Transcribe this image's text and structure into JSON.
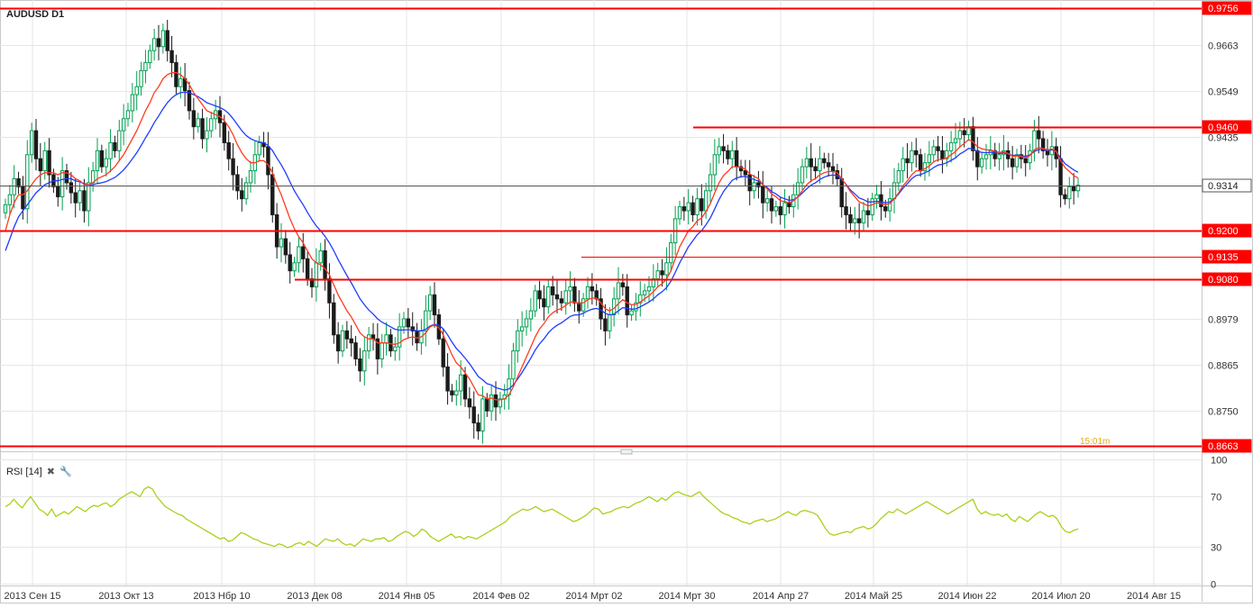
{
  "chart_data": {
    "type": "candlestick",
    "title": "AUDUSD D1",
    "x_ticks": [
      "2013 Сен 15",
      "2013 Окт 13",
      "2013 Нбр 10",
      "2013 Дек 08",
      "2014 Янв 05",
      "2014 Фев 02",
      "2014 Мрт 02",
      "2014 Мрт 30",
      "2014 Апр 27",
      "2014 Май 25",
      "2014 Июн 22",
      "2014 Июл 20",
      "2014 Авг 15"
    ],
    "y_ticks": [
      "0.9663",
      "0.9549",
      "0.9435",
      "0.8979",
      "0.8865",
      "0.8750"
    ],
    "y_range": [
      0.8656,
      0.9772
    ],
    "candles_close": [
      0.9265,
      0.929,
      0.933,
      0.931,
      0.9255,
      0.939,
      0.945,
      0.938,
      0.935,
      0.94,
      0.934,
      0.931,
      0.9285,
      0.935,
      0.932,
      0.9295,
      0.927,
      0.93,
      0.925,
      0.932,
      0.935,
      0.94,
      0.936,
      0.938,
      0.942,
      0.94,
      0.945,
      0.948,
      0.95,
      0.954,
      0.956,
      0.96,
      0.962,
      0.965,
      0.968,
      0.966,
      0.97,
      0.965,
      0.962,
      0.956,
      0.958,
      0.955,
      0.95,
      0.946,
      0.948,
      0.943,
      0.945,
      0.948,
      0.95,
      0.947,
      0.942,
      0.938,
      0.934,
      0.93,
      0.928,
      0.932,
      0.935,
      0.939,
      0.942,
      0.941,
      0.934,
      0.924,
      0.916,
      0.918,
      0.914,
      0.91,
      0.912,
      0.916,
      0.913,
      0.908,
      0.906,
      0.912,
      0.915,
      0.908,
      0.902,
      0.894,
      0.89,
      0.895,
      0.893,
      0.892,
      0.888,
      0.885,
      0.89,
      0.894,
      0.893,
      0.888,
      0.892,
      0.894,
      0.89,
      0.891,
      0.896,
      0.898,
      0.896,
      0.895,
      0.892,
      0.895,
      0.9,
      0.904,
      0.899,
      0.893,
      0.886,
      0.88,
      0.879,
      0.88,
      0.884,
      0.878,
      0.876,
      0.872,
      0.87,
      0.878,
      0.875,
      0.879,
      0.876,
      0.878,
      0.879,
      0.883,
      0.89,
      0.895,
      0.896,
      0.898,
      0.9,
      0.905,
      0.903,
      0.901,
      0.906,
      0.904,
      0.903,
      0.902,
      0.905,
      0.906,
      0.902,
      0.9,
      0.903,
      0.906,
      0.905,
      0.903,
      0.898,
      0.895,
      0.899,
      0.903,
      0.907,
      0.906,
      0.899,
      0.9,
      0.902,
      0.904,
      0.905,
      0.906,
      0.908,
      0.91,
      0.909,
      0.912,
      0.917,
      0.923,
      0.926,
      0.925,
      0.927,
      0.924,
      0.928,
      0.925,
      0.93,
      0.934,
      0.939,
      0.941,
      0.94,
      0.938,
      0.94,
      0.936,
      0.935,
      0.934,
      0.93,
      0.932,
      0.931,
      0.927,
      0.928,
      0.925,
      0.926,
      0.924,
      0.927,
      0.926,
      0.929,
      0.932,
      0.936,
      0.938,
      0.936,
      0.935,
      0.938,
      0.937,
      0.936,
      0.935,
      0.933,
      0.926,
      0.924,
      0.922,
      0.923,
      0.922,
      0.925,
      0.924,
      0.928,
      0.929,
      0.926,
      0.925,
      0.928,
      0.932,
      0.935,
      0.938,
      0.937,
      0.94,
      0.939,
      0.935,
      0.937,
      0.939,
      0.941,
      0.94,
      0.938,
      0.94,
      0.942,
      0.943,
      0.945,
      0.944,
      0.946,
      0.94,
      0.936,
      0.938,
      0.939,
      0.94,
      0.938,
      0.939,
      0.94,
      0.938,
      0.936,
      0.939,
      0.938,
      0.937,
      0.94,
      0.945,
      0.943,
      0.94,
      0.939,
      0.941,
      0.938,
      0.929,
      0.928,
      0.931,
      0.93,
      0.9314
    ],
    "ma_fast": [
      0.92,
      0.924,
      0.927,
      0.929,
      0.929,
      0.93,
      0.9315,
      0.933,
      0.934,
      0.9345,
      0.9345,
      0.9345,
      0.934,
      0.9345,
      0.9345,
      0.934,
      0.933,
      0.9325,
      0.9315,
      0.9315,
      0.932,
      0.933,
      0.9335,
      0.934,
      0.935,
      0.936,
      0.9375,
      0.939,
      0.941,
      0.943,
      0.945,
      0.9475,
      0.95,
      0.952,
      0.9545,
      0.956,
      0.958,
      0.959,
      0.9595,
      0.9595,
      0.959,
      0.958,
      0.9565,
      0.9545,
      0.953,
      0.9515,
      0.95,
      0.9495,
      0.949,
      0.9485,
      0.9475,
      0.946,
      0.944,
      0.9415,
      0.9395,
      0.938,
      0.937,
      0.937,
      0.9375,
      0.9375,
      0.9365,
      0.9345,
      0.9315,
      0.929,
      0.926,
      0.923,
      0.9205,
      0.9185,
      0.917,
      0.915,
      0.913,
      0.912,
      0.9115,
      0.9105,
      0.909,
      0.9065,
      0.904,
      0.902,
      0.9,
      0.8985,
      0.8965,
      0.8945,
      0.8935,
      0.893,
      0.893,
      0.892,
      0.892,
      0.892,
      0.8918,
      0.8916,
      0.892,
      0.8928,
      0.8932,
      0.8935,
      0.8932,
      0.8935,
      0.8945,
      0.896,
      0.8965,
      0.8958,
      0.894,
      0.8915,
      0.889,
      0.887,
      0.886,
      0.8845,
      0.883,
      0.881,
      0.879,
      0.8788,
      0.878,
      0.8782,
      0.8778,
      0.8778,
      0.878,
      0.879,
      0.881,
      0.8835,
      0.886,
      0.8885,
      0.891,
      0.8935,
      0.8955,
      0.8968,
      0.8985,
      0.8995,
      0.9002,
      0.9006,
      0.9014,
      0.9022,
      0.9022,
      0.9018,
      0.902,
      0.9028,
      0.9032,
      0.9032,
      0.902,
      0.9005,
      0.9,
      0.9006,
      0.9018,
      0.9028,
      0.902,
      0.9015,
      0.9016,
      0.9022,
      0.903,
      0.9038,
      0.9048,
      0.906,
      0.9068,
      0.908,
      0.91,
      0.913,
      0.916,
      0.918,
      0.92,
      0.921,
      0.9225,
      0.9232,
      0.9248,
      0.9268,
      0.9295,
      0.932,
      0.9338,
      0.9348,
      0.936,
      0.936,
      0.9358,
      0.9354,
      0.9342,
      0.9336,
      0.933,
      0.9315,
      0.9305,
      0.9292,
      0.9285,
      0.9275,
      0.9273,
      0.927,
      0.9275,
      0.9285,
      0.93,
      0.9315,
      0.9325,
      0.933,
      0.934,
      0.9345,
      0.9348,
      0.9348,
      0.9345,
      0.933,
      0.9315,
      0.9298,
      0.9285,
      0.9272,
      0.9268,
      0.9262,
      0.9265,
      0.927,
      0.9268,
      0.9265,
      0.9268,
      0.928,
      0.9295,
      0.9312,
      0.9325,
      0.934,
      0.935,
      0.935,
      0.9355,
      0.9362,
      0.9372,
      0.9378,
      0.9378,
      0.9382,
      0.939,
      0.9398,
      0.941,
      0.9418,
      0.9428,
      0.9422,
      0.941,
      0.9405,
      0.9402,
      0.9402,
      0.9398,
      0.9396,
      0.9397,
      0.9393,
      0.9386,
      0.9387,
      0.9385,
      0.9382,
      0.9388,
      0.9402,
      0.9408,
      0.9406,
      0.9402,
      0.9404,
      0.9398,
      0.9375,
      0.9358,
      0.9348,
      0.9338,
      0.9332
    ],
    "ma_slow": [
      0.915,
      0.918,
      0.921,
      0.9235,
      0.925,
      0.9265,
      0.928,
      0.9295,
      0.9305,
      0.9315,
      0.932,
      0.9325,
      0.9325,
      0.9328,
      0.933,
      0.933,
      0.9325,
      0.9322,
      0.9318,
      0.9315,
      0.9315,
      0.9318,
      0.932,
      0.9323,
      0.9328,
      0.9333,
      0.9342,
      0.9352,
      0.9365,
      0.938,
      0.9395,
      0.9413,
      0.9432,
      0.945,
      0.947,
      0.9487,
      0.9505,
      0.952,
      0.9532,
      0.954,
      0.9545,
      0.9546,
      0.9545,
      0.954,
      0.9535,
      0.9528,
      0.952,
      0.9516,
      0.9512,
      0.9508,
      0.9502,
      0.9493,
      0.948,
      0.9465,
      0.945,
      0.9438,
      0.943,
      0.9425,
      0.9422,
      0.942,
      0.9413,
      0.94,
      0.9382,
      0.9365,
      0.9345,
      0.9322,
      0.93,
      0.9282,
      0.9265,
      0.9246,
      0.9228,
      0.9212,
      0.92,
      0.9186,
      0.917,
      0.915,
      0.9128,
      0.9108,
      0.9088,
      0.907,
      0.905,
      0.903,
      0.9015,
      0.9002,
      0.8992,
      0.898,
      0.8972,
      0.8966,
      0.896,
      0.8954,
      0.8952,
      0.8952,
      0.8953,
      0.8953,
      0.895,
      0.895,
      0.8954,
      0.8962,
      0.8966,
      0.8964,
      0.8955,
      0.894,
      0.8922,
      0.8906,
      0.8895,
      0.8882,
      0.8868,
      0.8852,
      0.8836,
      0.8828,
      0.8818,
      0.8815,
      0.8808,
      0.8805,
      0.8802,
      0.8805,
      0.8815,
      0.883,
      0.8846,
      0.8864,
      0.8882,
      0.8902,
      0.8918,
      0.893,
      0.8945,
      0.8956,
      0.8964,
      0.897,
      0.8978,
      0.8986,
      0.899,
      0.899,
      0.8994,
      0.9,
      0.9004,
      0.9006,
      0.9002,
      0.8994,
      0.899,
      0.8992,
      0.9,
      0.9008,
      0.9006,
      0.9004,
      0.9005,
      0.901,
      0.9016,
      0.9022,
      0.903,
      0.904,
      0.9048,
      0.9058,
      0.9074,
      0.9096,
      0.912,
      0.914,
      0.916,
      0.9175,
      0.919,
      0.92,
      0.9215,
      0.9232,
      0.9255,
      0.9278,
      0.9298,
      0.9312,
      0.9326,
      0.9332,
      0.9335,
      0.9336,
      0.9332,
      0.9328,
      0.9324,
      0.9315,
      0.9308,
      0.9298,
      0.9292,
      0.9284,
      0.928,
      0.9276,
      0.9278,
      0.9284,
      0.9294,
      0.9305,
      0.9314,
      0.932,
      0.9328,
      0.9334,
      0.9338,
      0.9339,
      0.9338,
      0.9328,
      0.9316,
      0.9302,
      0.9292,
      0.9282,
      0.9278,
      0.9272,
      0.9272,
      0.9274,
      0.9272,
      0.927,
      0.9272,
      0.928,
      0.9292,
      0.9306,
      0.9318,
      0.933,
      0.9338,
      0.934,
      0.9345,
      0.935,
      0.9358,
      0.9364,
      0.9366,
      0.937,
      0.9376,
      0.9382,
      0.9392,
      0.9398,
      0.9406,
      0.9404,
      0.9398,
      0.9396,
      0.9395,
      0.9396,
      0.9394,
      0.9393,
      0.9394,
      0.9392,
      0.9388,
      0.9389,
      0.9388,
      0.9386,
      0.939,
      0.9398,
      0.9403,
      0.9403,
      0.94,
      0.9402,
      0.9398,
      0.9382,
      0.9368,
      0.936,
      0.9352,
      0.9346
    ],
    "rsi": {
      "label": "RSI [14]",
      "y_ticks": [
        "100",
        "70",
        "30",
        "0"
      ],
      "range": [
        0,
        100
      ],
      "values": [
        62,
        64,
        68,
        64,
        61,
        66,
        70,
        65,
        60,
        58,
        55,
        60,
        54,
        56,
        58,
        56,
        59,
        62,
        60,
        58,
        61,
        63,
        62,
        64,
        65,
        62,
        64,
        68,
        70,
        72,
        74,
        72,
        70,
        76,
        78,
        76,
        70,
        66,
        62,
        60,
        58,
        56,
        55,
        52,
        50,
        48,
        46,
        44,
        42,
        40,
        38,
        36,
        37,
        34,
        35,
        38,
        41,
        40,
        38,
        36,
        35,
        33,
        32,
        31,
        30,
        32,
        31,
        29,
        30,
        32,
        33,
        31,
        34,
        32,
        30,
        33,
        36,
        35,
        34,
        36,
        33,
        31,
        32,
        30,
        33,
        36,
        35,
        34,
        36,
        36,
        37,
        34,
        35,
        38,
        40,
        42,
        41,
        38,
        40,
        44,
        42,
        38,
        36,
        34,
        36,
        38,
        40,
        37,
        38,
        36,
        38,
        37,
        36,
        38,
        40,
        42,
        44,
        46,
        48,
        50,
        54,
        56,
        58,
        60,
        59,
        60,
        62,
        60,
        58,
        59,
        60,
        58,
        56,
        54,
        52,
        50,
        51,
        53,
        55,
        58,
        61,
        60,
        56,
        57,
        58,
        60,
        61,
        62,
        61,
        63,
        65,
        66,
        68,
        70,
        68,
        66,
        69,
        67,
        70,
        73,
        74,
        72,
        71,
        70,
        72,
        74,
        70,
        67,
        64,
        61,
        58,
        56,
        55,
        53,
        52,
        50,
        49,
        48,
        50,
        51,
        52,
        50,
        51,
        52,
        54,
        56,
        58,
        56,
        55,
        58,
        59,
        58,
        57,
        55,
        50,
        44,
        40,
        39,
        40,
        41,
        42,
        41,
        44,
        45,
        46,
        44,
        45,
        48,
        52,
        55,
        58,
        57,
        60,
        58,
        56,
        58,
        60,
        62,
        64,
        66,
        64,
        62,
        60,
        58,
        56,
        58,
        60,
        62,
        64,
        66,
        68,
        60,
        56,
        58,
        56,
        55,
        56,
        54,
        56,
        52,
        50,
        54,
        52,
        50,
        53,
        56,
        58,
        56,
        54,
        55,
        52,
        46,
        42,
        41,
        43,
        44
      ]
    },
    "horizontal_levels": [
      "0.9756",
      "0.9460",
      "0.9314",
      "0.9200",
      "0.9135",
      "0.9080",
      "0.8663"
    ],
    "price_labels": [
      "0.9756",
      "0.9460",
      "0.9314",
      "0.9200",
      "0.9135",
      "0.9080",
      "0.8663"
    ],
    "overlay_text": "15:01m",
    "colors": {
      "up": "#00a050",
      "down": "#1b1b1b",
      "ma_fast": "#ff3b1f",
      "ma_slow": "#1f3cff",
      "level": "#ff0000",
      "rsi": "#a8d11c",
      "grid": "#e6e6e6"
    }
  }
}
